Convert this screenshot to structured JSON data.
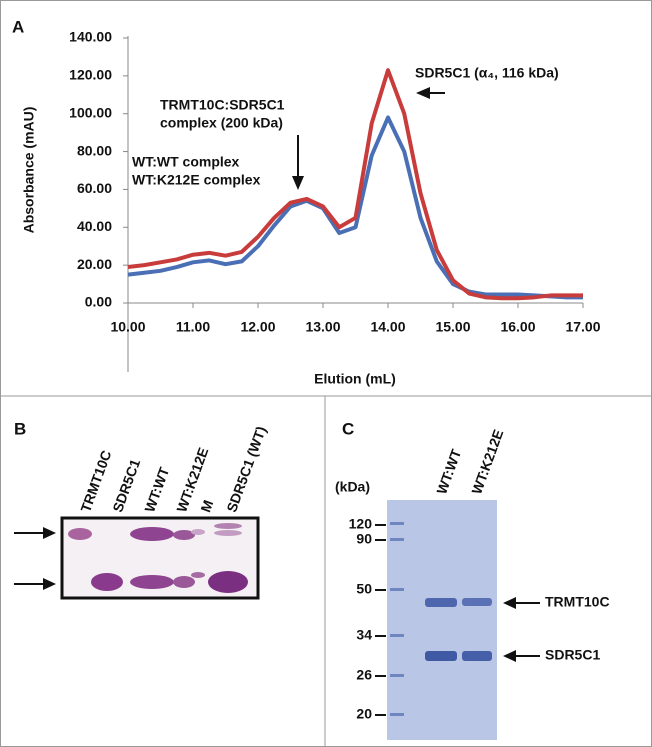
{
  "chart_data": {
    "type": "line",
    "panel": "A",
    "xlabel": "Elution (mL)",
    "ylabel": "Absorbance (mAU)",
    "x": [
      10,
      10.25,
      10.5,
      10.75,
      11,
      11.25,
      11.5,
      11.75,
      12,
      12.25,
      12.5,
      12.75,
      13,
      13.25,
      13.5,
      13.75,
      14,
      14.25,
      14.5,
      14.75,
      15,
      15.25,
      15.5,
      15.75,
      16,
      16.25,
      16.5,
      16.75,
      17
    ],
    "series": [
      {
        "name": "WT:WT complex",
        "color": "#4a6fb5",
        "values": [
          15,
          16,
          17,
          19,
          21.5,
          22.5,
          20.5,
          22,
          30,
          41,
          51,
          54,
          50,
          37,
          40,
          78,
          98,
          80,
          45,
          22,
          10,
          6,
          4.5,
          4.5,
          4.5,
          4,
          3.5,
          3,
          3
        ]
      },
      {
        "name": "WT:K212E complex",
        "color": "#c83c3c",
        "values": [
          19,
          20,
          21.5,
          23,
          25.5,
          26.5,
          25,
          27,
          35,
          45,
          53,
          55,
          51,
          40,
          45,
          95,
          123,
          100,
          58,
          28,
          12,
          5,
          3,
          2.5,
          2.5,
          3,
          4,
          4,
          4
        ]
      }
    ],
    "xlim": [
      10,
      17
    ],
    "xticks": [
      {
        "value": 10,
        "label": "10.00"
      },
      {
        "value": 11,
        "label": "11.00"
      },
      {
        "value": 12,
        "label": "12.00"
      },
      {
        "value": 13,
        "label": "13.00"
      },
      {
        "value": 14,
        "label": "14.00"
      },
      {
        "value": 15,
        "label": "15.00"
      },
      {
        "value": 16,
        "label": "16.00"
      },
      {
        "value": 17,
        "label": "17.00"
      }
    ],
    "ylim": [
      0,
      140
    ],
    "yticks": [
      {
        "value": 0,
        "label": "0.00"
      },
      {
        "value": 20,
        "label": "20.00"
      },
      {
        "value": 40,
        "label": "40.00"
      },
      {
        "value": 60,
        "label": "60.00"
      },
      {
        "value": 80,
        "label": "80.00"
      },
      {
        "value": 100,
        "label": "100.00"
      },
      {
        "value": 120,
        "label": "120.00"
      },
      {
        "value": 140,
        "label": "140.00"
      }
    ],
    "annotations": [
      [
        "TRMT10C:SDR5C1",
        "complex  (200 kDa)"
      ],
      [
        "SDR5C1 (α₄, 116 kDa)"
      ]
    ]
  },
  "gel_b": {
    "panel": "B",
    "lanes": [
      "TRMT10C",
      "SDR5C1",
      "WT:WT",
      "WT:K212E",
      "M",
      "SDR5C1 (WT)"
    ]
  },
  "gel_c": {
    "panel": "C",
    "unit": "(kDa)",
    "lanes": [
      "WT:WT",
      "WT:K212E"
    ],
    "markers": [
      "120",
      "90",
      "50",
      "34",
      "26",
      "20"
    ],
    "bands": [
      "TRMT10C",
      "SDR5C1"
    ]
  }
}
